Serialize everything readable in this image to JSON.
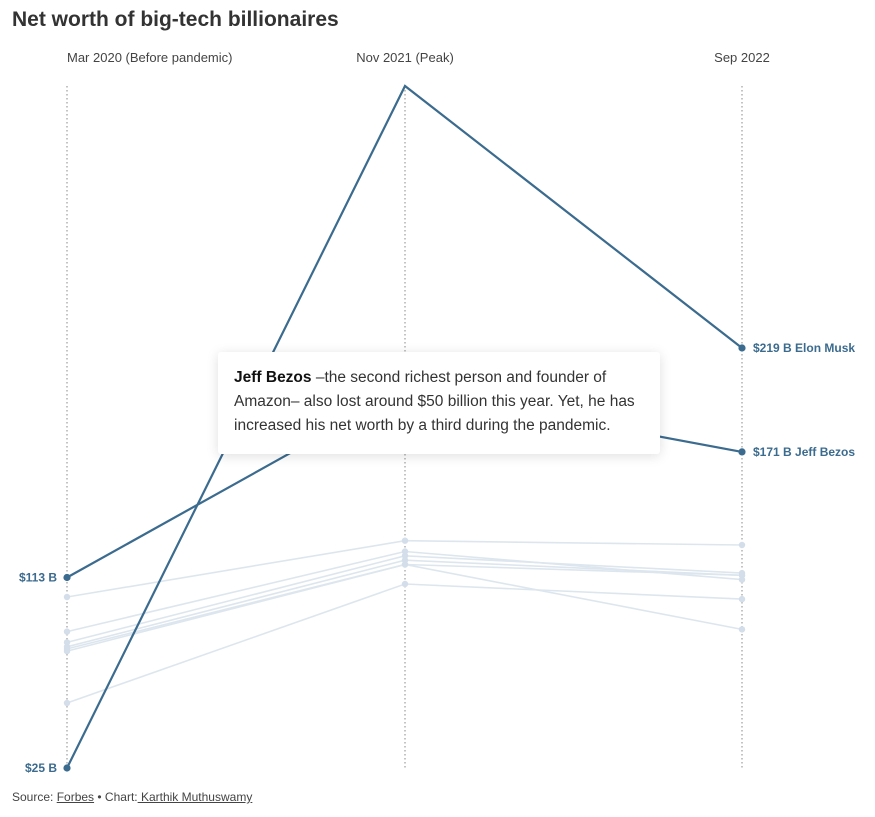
{
  "chart_data": {
    "type": "line",
    "title": "Net worth of big-tech billionaires",
    "columns": [
      "Mar 2020 (Before pandemic)",
      "Nov 2021 (Peak)",
      "Sep 2022"
    ],
    "ylim": [
      25,
      340
    ],
    "highlighted": [
      {
        "name": "Elon Musk",
        "values": [
          25,
          340,
          219
        ],
        "end_label": "$219 B Elon Musk",
        "color": "#3b6b8e"
      },
      {
        "name": "Jeff Bezos",
        "values": [
          113,
          200,
          171
        ],
        "end_label": "$171 B Jeff Bezos",
        "color": "#3b6b8e"
      }
    ],
    "start_labels": [
      "$113 B",
      "$25 B"
    ],
    "background": [
      {
        "values": [
          104,
          130,
          128
        ]
      },
      {
        "values": [
          88,
          125,
          112
        ]
      },
      {
        "values": [
          83,
          123,
          115
        ]
      },
      {
        "values": [
          81,
          121,
          114
        ]
      },
      {
        "values": [
          80,
          119,
          114
        ]
      },
      {
        "values": [
          79,
          119,
          89
        ]
      },
      {
        "values": [
          55,
          110,
          103
        ]
      }
    ],
    "background_color": "#dde6ee",
    "grid": false
  },
  "tooltip": {
    "name": "Jeff Bezos",
    "text": " –the second richest person and founder of Amazon– also lost around $50 billion this year. Yet, he has increased his net worth by a third during the pandemic."
  },
  "footer": {
    "source_prefix": "Source: ",
    "source_link": "Forbes",
    "separator": " • Chart:",
    "author_link": " Karthik Muthuswamy"
  }
}
